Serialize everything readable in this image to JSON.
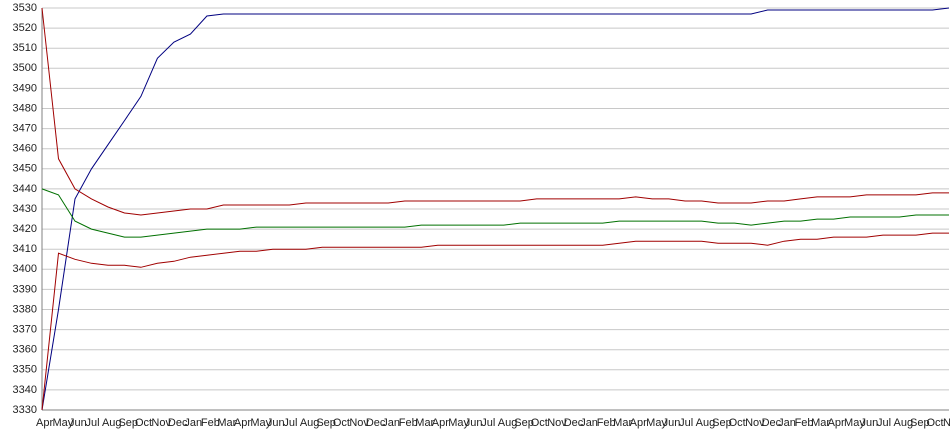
{
  "chart_data": {
    "type": "line",
    "categories": [
      "Apr",
      "May",
      "Jun",
      "Jul",
      "Aug",
      "Sep",
      "Oct",
      "Nov",
      "Dec",
      "Jan",
      "Feb",
      "Mar",
      "Apr",
      "May",
      "Jun",
      "Jul",
      "Aug",
      "Sep",
      "Oct",
      "Nov",
      "Dec",
      "Jan",
      "Feb",
      "Mar",
      "Apr",
      "May",
      "Jun",
      "Jul",
      "Aug",
      "Sep",
      "Oct",
      "Nov",
      "Dec",
      "Jan",
      "Feb",
      "Mar",
      "Apr",
      "May",
      "Jun",
      "Jul",
      "Aug",
      "Sep",
      "Oct",
      "Nov",
      "Dec",
      "Jan",
      "Feb",
      "Mar",
      "Apr",
      "May",
      "Jun",
      "Jul",
      "Aug",
      "Sep",
      "Oct",
      "Nov"
    ],
    "series": [
      {
        "color": "#000080",
        "values": [
          3330,
          3380,
          3435,
          3450,
          3462,
          3474,
          3486,
          3505,
          3513,
          3517,
          3526,
          3527,
          3527,
          3527,
          3527,
          3527,
          3527,
          3527,
          3527,
          3527,
          3527,
          3527,
          3527,
          3527,
          3527,
          3527,
          3527,
          3527,
          3527,
          3527,
          3527,
          3527,
          3527,
          3527,
          3527,
          3527,
          3527,
          3527,
          3527,
          3527,
          3527,
          3527,
          3527,
          3527,
          3529,
          3529,
          3529,
          3529,
          3529,
          3529,
          3529,
          3529,
          3529,
          3529,
          3529,
          3530
        ]
      },
      {
        "color": "#a00000",
        "values": [
          3530,
          3455,
          3440,
          3435,
          3431,
          3428,
          3427,
          3428,
          3429,
          3430,
          3430,
          3432,
          3432,
          3432,
          3432,
          3432,
          3433,
          3433,
          3433,
          3433,
          3433,
          3433,
          3434,
          3434,
          3434,
          3434,
          3434,
          3434,
          3434,
          3434,
          3435,
          3435,
          3435,
          3435,
          3435,
          3435,
          3436,
          3435,
          3435,
          3434,
          3434,
          3433,
          3433,
          3433,
          3434,
          3434,
          3435,
          3436,
          3436,
          3436,
          3437,
          3437,
          3437,
          3437,
          3438,
          3438
        ]
      },
      {
        "color": "#007000",
        "values": [
          3440,
          3437,
          3424,
          3420,
          3418,
          3416,
          3416,
          3417,
          3418,
          3419,
          3420,
          3420,
          3420,
          3421,
          3421,
          3421,
          3421,
          3421,
          3421,
          3421,
          3421,
          3421,
          3421,
          3422,
          3422,
          3422,
          3422,
          3422,
          3422,
          3423,
          3423,
          3423,
          3423,
          3423,
          3423,
          3424,
          3424,
          3424,
          3424,
          3424,
          3424,
          3423,
          3423,
          3422,
          3423,
          3424,
          3424,
          3425,
          3425,
          3426,
          3426,
          3426,
          3426,
          3427,
          3427,
          3427
        ]
      },
      {
        "color": "#a00000",
        "values": [
          3330,
          3408,
          3405,
          3403,
          3402,
          3402,
          3401,
          3403,
          3404,
          3406,
          3407,
          3408,
          3409,
          3409,
          3410,
          3410,
          3410,
          3411,
          3411,
          3411,
          3411,
          3411,
          3411,
          3411,
          3412,
          3412,
          3412,
          3412,
          3412,
          3412,
          3412,
          3412,
          3412,
          3412,
          3412,
          3413,
          3414,
          3414,
          3414,
          3414,
          3414,
          3413,
          3413,
          3413,
          3412,
          3414,
          3415,
          3415,
          3416,
          3416,
          3416,
          3417,
          3417,
          3417,
          3418,
          3418
        ]
      }
    ],
    "ylim": [
      3330,
      3530
    ],
    "yticks": [
      3330,
      3340,
      3350,
      3360,
      3370,
      3380,
      3390,
      3400,
      3410,
      3420,
      3430,
      3440,
      3450,
      3460,
      3470,
      3480,
      3490,
      3500,
      3510,
      3520,
      3530
    ],
    "grid": true
  }
}
